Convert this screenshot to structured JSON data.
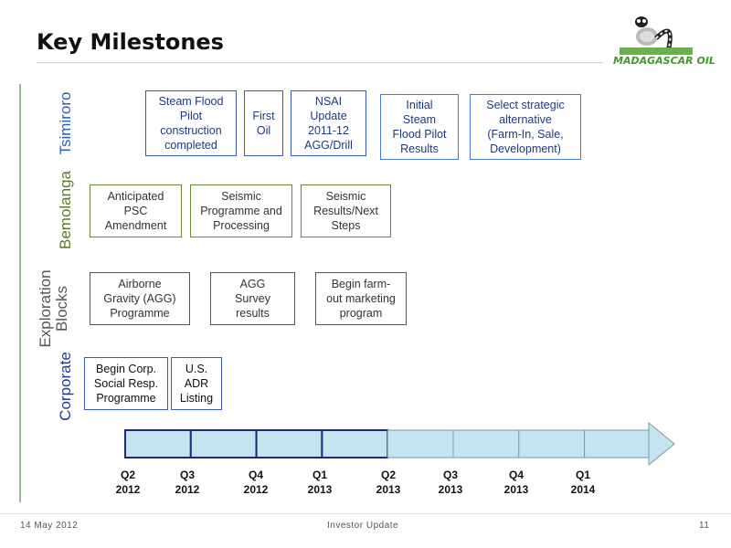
{
  "title": "Key Milestones",
  "logo": {
    "text": "MADAGASCAR OIL"
  },
  "rows": {
    "tsimiroro": {
      "label": "Tsimiroro",
      "items": [
        {
          "text": "Steam Flood\nPilot\nconstruction\ncompleted"
        },
        {
          "text": "First\nOil"
        },
        {
          "text": "NSAI\nUpdate\n2011-12\nAGG/Drill"
        },
        {
          "text": "Initial\nSteam\nFlood Pilot\nResults"
        },
        {
          "text": "Select strategic\nalternative\n(Farm-In, Sale,\nDevelopment)"
        }
      ]
    },
    "bemolanga": {
      "label": "Bemolanga",
      "items": [
        {
          "text": "Anticipated\nPSC\nAmendment"
        },
        {
          "text": "Seismic\nProgramme and\nProcessing"
        },
        {
          "text": "Seismic\nResults/Next\nSteps"
        }
      ]
    },
    "exploration": {
      "label": "Exploration\nBlocks",
      "items": [
        {
          "text": "Airborne\nGravity (AGG)\nProgramme"
        },
        {
          "text": "AGG\nSurvey\nresults"
        },
        {
          "text": "Begin farm-\nout marketing\nprogram"
        }
      ]
    },
    "corporate": {
      "label": "Corporate",
      "items": [
        {
          "text": "Begin Corp.\nSocial Resp.\nProgramme"
        },
        {
          "text": "U.S.\nADR\nListing"
        }
      ]
    }
  },
  "timeline": {
    "quarters": [
      "Q2\n2012",
      "Q3\n2012",
      "Q4\n2012",
      "Q1\n2013",
      "Q2\n2013",
      "Q3\n2013",
      "Q4\n2013",
      "Q1\n2014"
    ],
    "colors": {
      "fill": "#c5e4ef",
      "border": "#1f2a7a",
      "arrow": "#c5e4ef"
    }
  },
  "footer": {
    "date": "14 May 2012",
    "center": "Investor Update",
    "page": "11"
  }
}
